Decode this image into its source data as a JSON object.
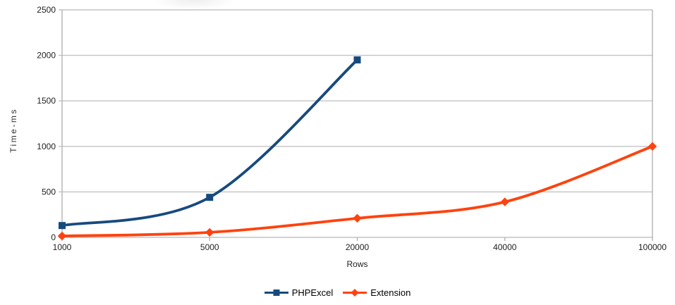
{
  "colors": {
    "grid": "#c3c3c3",
    "axis": "#b3b3b3",
    "text": "#1e1e1e",
    "background": "#ffffff"
  },
  "chart_data": {
    "type": "line",
    "title": "",
    "xlabel": "Rows",
    "ylabel": "Time-ms",
    "categories": [
      "1000",
      "5000",
      "20000",
      "40000",
      "100000"
    ],
    "series": [
      {
        "name": "PHPExcel",
        "color": "#164A7E",
        "marker": "square",
        "values": [
          130,
          440,
          1950,
          null,
          null
        ]
      },
      {
        "name": "Extension",
        "color": "#FF420E",
        "marker": "diamond",
        "values": [
          15,
          55,
          210,
          390,
          1000
        ]
      }
    ],
    "ylim": [
      0,
      2500
    ],
    "yticks": [
      0,
      500,
      1000,
      1500,
      2000,
      2500
    ],
    "grid": true,
    "smooth_lines": true,
    "legend_position": "bottom"
  }
}
